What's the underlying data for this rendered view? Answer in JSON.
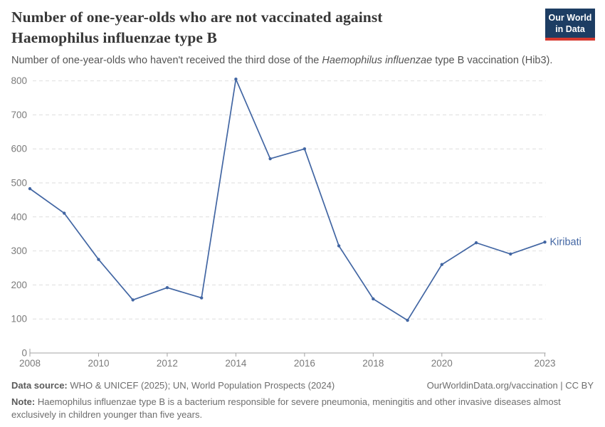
{
  "header": {
    "title_line1": "Number of one-year-olds who are not vaccinated against",
    "title_line2": "Haemophilus influenzae type B",
    "subtitle_prefix": "Number of one-year-olds who haven't received the third dose of the ",
    "subtitle_italic": "Haemophilus influenzae",
    "subtitle_suffix": " type B vaccination (Hib3).",
    "logo_line1": "Our World",
    "logo_line2": "in Data",
    "logo_bg_color": "#1d3d63",
    "logo_accent_color": "#d6382e"
  },
  "chart_data": {
    "type": "line",
    "title": "Number of one-year-olds who are not vaccinated against Haemophilus influenzae type B",
    "subtitle": "Number of one-year-olds who haven't received the third dose of the Haemophilus influenzae type B vaccination (Hib3).",
    "x": [
      2008,
      2009,
      2010,
      2011,
      2012,
      2013,
      2014,
      2015,
      2016,
      2017,
      2018,
      2019,
      2020,
      2021,
      2022,
      2023
    ],
    "series": [
      {
        "name": "Kiribati",
        "color": "#4266a3",
        "values": [
          483,
          411,
          275,
          156,
          192,
          162,
          805,
          571,
          600,
          315,
          159,
          96,
          260,
          324,
          291,
          326
        ]
      }
    ],
    "xlabel": "",
    "ylabel": "",
    "xlim": [
      2008,
      2023
    ],
    "ylim": [
      0,
      800
    ],
    "y_ticks": [
      0,
      100,
      200,
      300,
      400,
      500,
      600,
      700,
      800
    ],
    "x_ticks": [
      2008,
      2010,
      2012,
      2014,
      2016,
      2018,
      2020,
      2023
    ],
    "grid": "horizontal-dashed",
    "grid_color": "#dedede",
    "axis_color": "#a3a3a3",
    "tick_label_color": "#7b7b7b",
    "legend": "end-of-line-label"
  },
  "footer": {
    "source_label": "Data source:",
    "source_text": " WHO & UNICEF (2025); UN, World Population Prospects (2024)",
    "attribution": "OurWorldinData.org/vaccination | CC BY",
    "note_label": "Note:",
    "note_text": " Haemophilus influenzae type B is a bacterium responsible for severe pneumonia, meningitis and other invasive diseases almost exclusively in children younger than five years."
  }
}
